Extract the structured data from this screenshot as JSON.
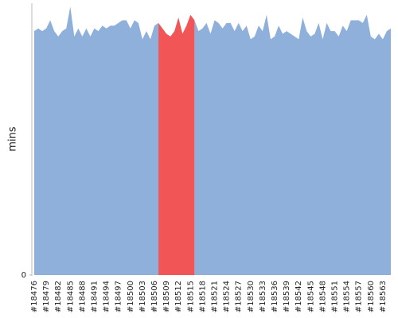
{
  "chart_data": {
    "type": "area",
    "y_label": "mins",
    "ylim": [
      0,
      100
    ],
    "yticks": [
      0
    ],
    "categories": [
      "#18476",
      null,
      null,
      "#18479",
      null,
      null,
      "#18482",
      null,
      null,
      "#18485",
      null,
      null,
      "#18488",
      null,
      null,
      "#18491",
      null,
      null,
      "#18494",
      null,
      null,
      "#18497",
      null,
      null,
      "#18500",
      null,
      null,
      "#18503",
      null,
      null,
      "#18506",
      null,
      null,
      "#18509",
      null,
      null,
      "#18512",
      null,
      null,
      "#18515",
      null,
      null,
      "#18518",
      null,
      null,
      "#18521",
      null,
      null,
      "#18524",
      null,
      null,
      "#18527",
      null,
      null,
      "#18530",
      null,
      null,
      "#18533",
      null,
      null,
      "#18536",
      null,
      null,
      "#18539",
      null,
      null,
      "#18542",
      null,
      null,
      "#18545",
      null,
      null,
      "#18548",
      null,
      null,
      "#18551",
      null,
      null,
      "#18554",
      null,
      null,
      "#18557",
      null,
      null,
      "#18560",
      null,
      null,
      "#18563",
      null,
      null
    ],
    "series": [
      {
        "color": "#8fb0da",
        "values": [
          90,
          91,
          90,
          91,
          94,
          90,
          88,
          90,
          91,
          99,
          88,
          91,
          88,
          91,
          88,
          91,
          90,
          92,
          91,
          92,
          92,
          93,
          94,
          94,
          91,
          94,
          93,
          87,
          90,
          87,
          92,
          93,
          null,
          null,
          null,
          null,
          null,
          null,
          null,
          null,
          94,
          90,
          91,
          93,
          89,
          94,
          93,
          91,
          93,
          93,
          90,
          93,
          90,
          92,
          87,
          88,
          92,
          90,
          96,
          87,
          88,
          92,
          89,
          90,
          89,
          88,
          87,
          95,
          90,
          88,
          89,
          93,
          87,
          93,
          90,
          90,
          88,
          92,
          90,
          94,
          94,
          94,
          93,
          96,
          88,
          87,
          89,
          87,
          90,
          91
        ]
      },
      {
        "color": "#f25555",
        "values": [
          null,
          null,
          null,
          null,
          null,
          null,
          null,
          null,
          null,
          null,
          null,
          null,
          null,
          null,
          null,
          null,
          null,
          null,
          null,
          null,
          null,
          null,
          null,
          null,
          null,
          null,
          null,
          null,
          null,
          null,
          null,
          93,
          91,
          89,
          88,
          90,
          95,
          89,
          92,
          96,
          94,
          null,
          null,
          null,
          null,
          null,
          null,
          null,
          null,
          null,
          null,
          null,
          null,
          null,
          null,
          null,
          null,
          null,
          null,
          null,
          null,
          null,
          null,
          null,
          null,
          null,
          null,
          null,
          null,
          null,
          null,
          null,
          null,
          null,
          null,
          null,
          null,
          null,
          null,
          null,
          null,
          null,
          null,
          null,
          null,
          null,
          null,
          null,
          null,
          null
        ]
      }
    ]
  }
}
